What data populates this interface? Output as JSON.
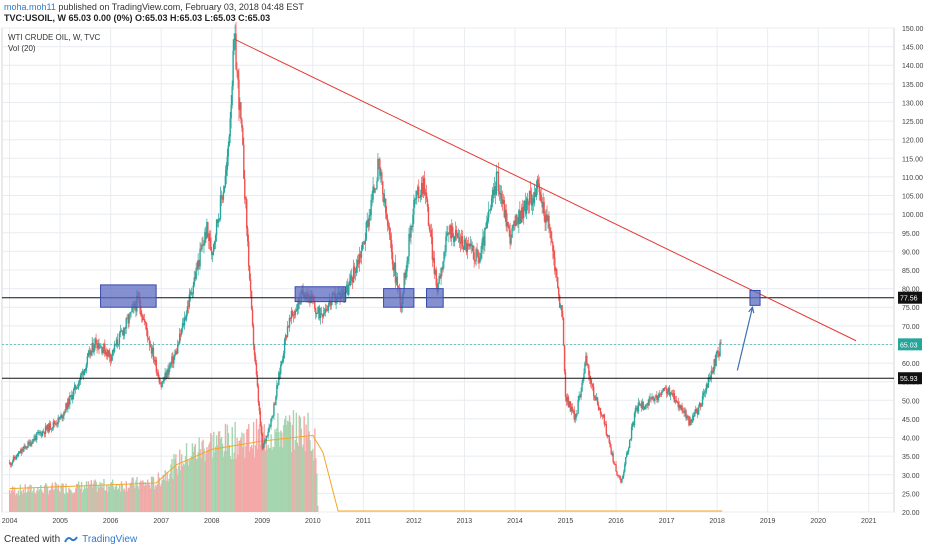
{
  "header": {
    "publisher_user": "moha.moh11",
    "publisher_rest": "published on TradingView.com, February 03, 2018 04:48 EST",
    "symbol_line": "TVC:USOIL, W  65.03  0.00 (0%)  O:65.03  H:65.03  L:65.03  C:65.03"
  },
  "chart_labels": {
    "title": "WTI CRUDE OIL, W, TVC",
    "indicator": "Vol (20)"
  },
  "footer": {
    "created_with": "Created with",
    "brand": "TradingView"
  },
  "colors": {
    "up": "#26a69a",
    "down": "#ef5350",
    "trendline": "#e53935",
    "hline": "#111111",
    "last_price": "#26a69a",
    "box_fill": "#5c6bc0",
    "arrow": "#3f6fb0",
    "grid": "#e8ecf0",
    "volume_ma": "#f5a623"
  },
  "chart_data": {
    "type": "candlestick",
    "y_axis": {
      "range": [
        20,
        150
      ],
      "ticks": [
        "20.00",
        "25.00",
        "30.00",
        "35.00",
        "40.00",
        "45.00",
        "50.00",
        "55.00",
        "60.00",
        "65.00",
        "70.00",
        "75.00",
        "80.00",
        "85.00",
        "90.00",
        "95.00",
        "100.00",
        "105.00",
        "110.00",
        "115.00",
        "120.00",
        "125.00",
        "130.00",
        "135.00",
        "140.00",
        "145.00",
        "150.00"
      ]
    },
    "x_axis": {
      "range": [
        2003.85,
        2021.5
      ],
      "ticks": [
        "2004",
        "2005",
        "2006",
        "2007",
        "2008",
        "2009",
        "2010",
        "2011",
        "2012",
        "2013",
        "2014",
        "2015",
        "2016",
        "2017",
        "2018",
        "2019",
        "2020",
        "2021"
      ]
    },
    "price_path": [
      [
        2004.0,
        33
      ],
      [
        2004.5,
        40
      ],
      [
        2005.0,
        45
      ],
      [
        2005.4,
        56
      ],
      [
        2005.7,
        66
      ],
      [
        2006.0,
        62
      ],
      [
        2006.55,
        77
      ],
      [
        2007.0,
        54
      ],
      [
        2007.3,
        63
      ],
      [
        2007.9,
        96
      ],
      [
        2008.0,
        90
      ],
      [
        2008.3,
        112
      ],
      [
        2008.45,
        147
      ],
      [
        2008.6,
        120
      ],
      [
        2008.8,
        70
      ],
      [
        2009.0,
        37
      ],
      [
        2009.2,
        46
      ],
      [
        2009.5,
        70
      ],
      [
        2009.85,
        80
      ],
      [
        2010.1,
        73
      ],
      [
        2010.4,
        77
      ],
      [
        2010.7,
        80
      ],
      [
        2011.0,
        92
      ],
      [
        2011.3,
        113
      ],
      [
        2011.6,
        86
      ],
      [
        2011.75,
        76
      ],
      [
        2012.0,
        103
      ],
      [
        2012.2,
        109
      ],
      [
        2012.45,
        80
      ],
      [
        2012.7,
        96
      ],
      [
        2013.0,
        92
      ],
      [
        2013.3,
        88
      ],
      [
        2013.65,
        110
      ],
      [
        2013.9,
        94
      ],
      [
        2014.1,
        100
      ],
      [
        2014.45,
        107
      ],
      [
        2014.7,
        95
      ],
      [
        2014.85,
        80
      ],
      [
        2014.95,
        70
      ],
      [
        2015.0,
        51
      ],
      [
        2015.2,
        45
      ],
      [
        2015.4,
        61
      ],
      [
        2015.55,
        52
      ],
      [
        2015.75,
        45
      ],
      [
        2016.0,
        31
      ],
      [
        2016.1,
        28
      ],
      [
        2016.4,
        48
      ],
      [
        2016.75,
        50
      ],
      [
        2017.0,
        53
      ],
      [
        2017.3,
        48
      ],
      [
        2017.45,
        44
      ],
      [
        2017.65,
        48
      ],
      [
        2017.9,
        58
      ],
      [
        2018.08,
        65.03
      ]
    ],
    "volume_path": [
      [
        2004.0,
        0.16
      ],
      [
        2005.0,
        0.18
      ],
      [
        2006.0,
        0.2
      ],
      [
        2006.9,
        0.22
      ],
      [
        2007.1,
        0.3
      ],
      [
        2007.5,
        0.42
      ],
      [
        2008.0,
        0.52
      ],
      [
        2008.8,
        0.55
      ],
      [
        2009.3,
        0.6
      ],
      [
        2009.9,
        0.62
      ],
      [
        2010.05,
        0.5
      ],
      [
        2010.1,
        0.02
      ]
    ],
    "volume_ma_path": [
      [
        2004.0,
        0.16
      ],
      [
        2006.9,
        0.2
      ],
      [
        2007.3,
        0.33
      ],
      [
        2008.0,
        0.44
      ],
      [
        2009.0,
        0.5
      ],
      [
        2010.0,
        0.54
      ],
      [
        2010.2,
        0.42
      ],
      [
        2010.5,
        0.0
      ],
      [
        2018.1,
        0.0
      ]
    ],
    "last_price": 65.03,
    "last_price_label": "65.03",
    "horizontal_lines": [
      {
        "value": 77.56,
        "label": "77.56"
      },
      {
        "value": 55.93,
        "label": "55.93"
      }
    ],
    "trendline": {
      "from": [
        2008.45,
        147
      ],
      "to": [
        2020.75,
        66
      ]
    },
    "boxes": [
      {
        "x0": 2005.8,
        "x1": 2006.9,
        "y0": 75,
        "y1": 81
      },
      {
        "x0": 2009.65,
        "x1": 2010.65,
        "y0": 76.5,
        "y1": 80.5
      },
      {
        "x0": 2011.4,
        "x1": 2012.0,
        "y0": 75,
        "y1": 80
      },
      {
        "x0": 2012.25,
        "x1": 2012.58,
        "y0": 75,
        "y1": 80
      },
      {
        "x0": 2018.65,
        "x1": 2018.85,
        "y0": 75.5,
        "y1": 79.5
      }
    ],
    "arrow": {
      "from": [
        2018.4,
        58
      ],
      "to": [
        2018.7,
        75
      ]
    }
  }
}
